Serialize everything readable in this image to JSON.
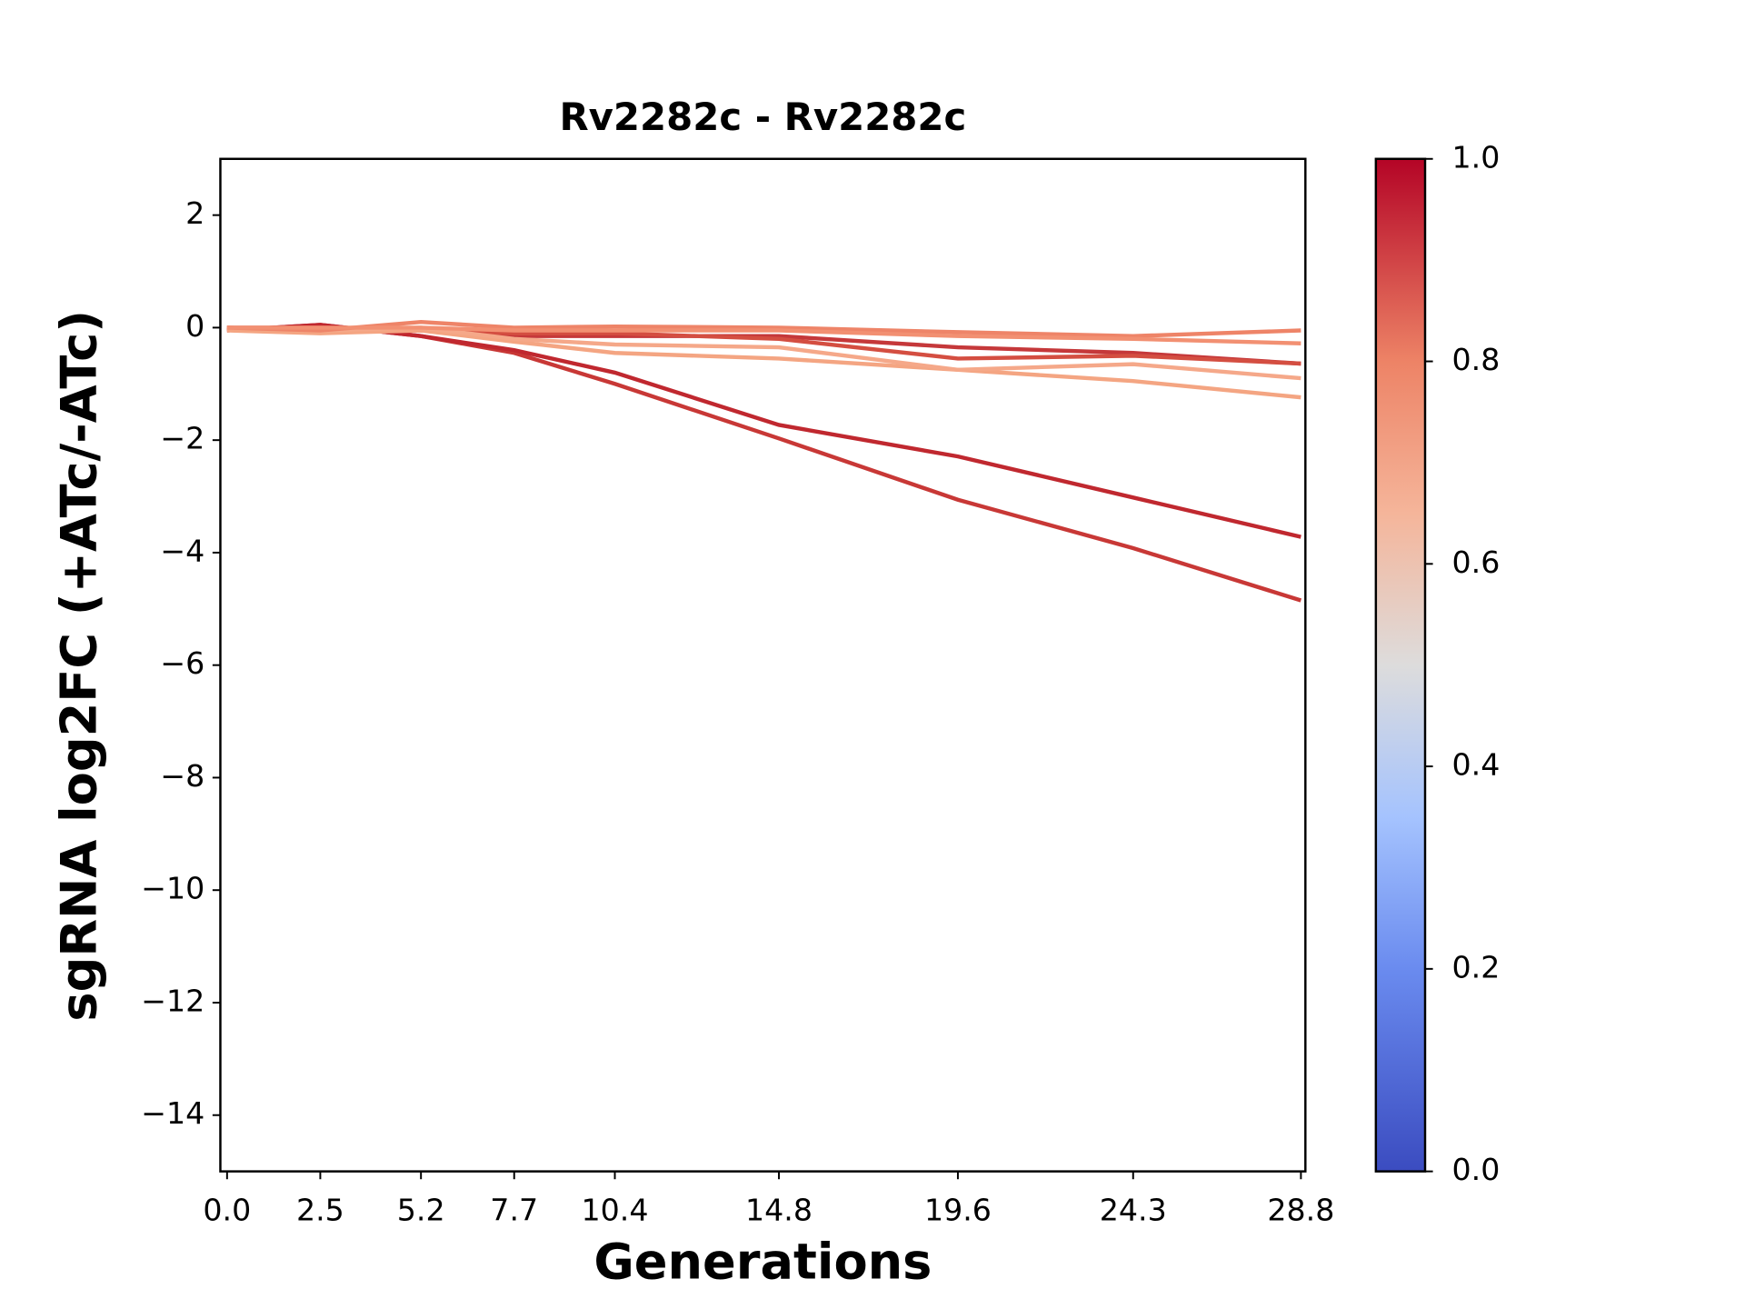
{
  "chart_data": {
    "type": "line",
    "title": "Rv2282c - Rv2282c",
    "xlabel": "Generations",
    "ylabel": "sgRNA log2FC (+ATc/-ATc)",
    "x": [
      0,
      2.5,
      5.2,
      7.7,
      10.4,
      14.8,
      19.6,
      24.3,
      28.8
    ],
    "series": [
      {
        "color": "#c83836",
        "values": [
          -0.05,
          0.05,
          -0.15,
          -0.45,
          -1.0,
          -1.97,
          -3.06,
          -3.92,
          -4.85
        ]
      },
      {
        "color": "#c0282f",
        "values": [
          -0.05,
          0.05,
          -0.15,
          -0.4,
          -0.8,
          -1.73,
          -2.29,
          -3.02,
          -3.72
        ]
      },
      {
        "color": "#c5383a",
        "values": [
          0,
          -0.05,
          -0.05,
          -0.15,
          -0.15,
          -0.15,
          -0.35,
          -0.45,
          -0.64
        ]
      },
      {
        "color": "#d44e41",
        "values": [
          0,
          0,
          -0.05,
          -0.1,
          -0.1,
          -0.2,
          -0.55,
          -0.5,
          -0.64
        ]
      },
      {
        "color": "#f4a582",
        "values": [
          -0.05,
          -0.1,
          -0.05,
          -0.25,
          -0.45,
          -0.55,
          -0.75,
          -0.95,
          -1.24
        ]
      },
      {
        "color": "#f5a889",
        "values": [
          0,
          -0.05,
          0,
          -0.2,
          -0.3,
          -0.35,
          -0.75,
          -0.65,
          -0.9
        ]
      },
      {
        "color": "#ee8468",
        "values": [
          0,
          -0.05,
          0.1,
          0,
          0.02,
          0,
          -0.08,
          -0.15,
          -0.05
        ]
      },
      {
        "color": "#f29072",
        "values": [
          0,
          0,
          0,
          -0.05,
          -0.05,
          -0.05,
          -0.15,
          -0.2,
          -0.28
        ]
      }
    ],
    "xlim": [
      -0.18,
      28.92
    ],
    "xticks": [
      {
        "value": 0,
        "label": "0.0"
      },
      2.5,
      5.2,
      7.7,
      10.4,
      14.8,
      19.6,
      24.3,
      28.8
    ],
    "ylim": [
      -15,
      3
    ],
    "yticks": [
      {
        "value": -14,
        "label": "−14"
      },
      {
        "value": -12,
        "label": "−12"
      },
      {
        "value": -10,
        "label": "−10"
      },
      {
        "value": -8,
        "label": "−8"
      },
      {
        "value": -6,
        "label": "−6"
      },
      {
        "value": -4,
        "label": "−4"
      },
      {
        "value": -2,
        "label": "−2"
      },
      0,
      2
    ],
    "colorbar": {
      "lim": [
        0,
        1
      ],
      "ticks": [
        {
          "value": 0,
          "label": "0.0"
        },
        {
          "value": 0.2,
          "label": "0.2"
        },
        {
          "value": 0.4,
          "label": "0.4"
        },
        {
          "value": 0.6,
          "label": "0.6"
        },
        {
          "value": 0.8,
          "label": "0.8"
        },
        {
          "value": 1,
          "label": "1.0"
        }
      ]
    }
  }
}
